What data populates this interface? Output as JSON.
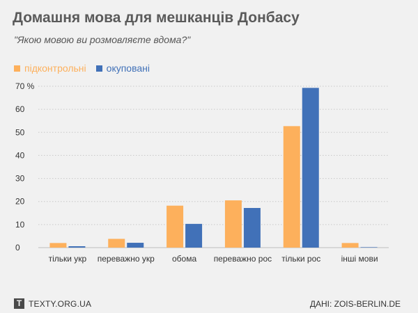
{
  "chart_data": {
    "type": "bar",
    "title": "Домашня мова для мешканців Донбасу",
    "subtitle": "\"Якою мовою ви розмовляєте вдома?\"",
    "categories": [
      "тільки укр",
      "переважно укр",
      "обома",
      "переважно рос",
      "тільки рос",
      "інші мови"
    ],
    "series": [
      {
        "name": "підконтрольні",
        "color": "#fdb05c",
        "values": [
          2.0,
          3.8,
          18.2,
          20.5,
          52.7,
          2.0
        ]
      },
      {
        "name": "окуповані",
        "color": "#4171b8",
        "values": [
          0.6,
          2.1,
          10.3,
          17.2,
          69.3,
          0.2
        ]
      }
    ],
    "ylim": [
      0,
      70
    ],
    "yticks": [
      0,
      10,
      20,
      30,
      40,
      50,
      60,
      70
    ],
    "ytick_labels": [
      "0",
      "10",
      "20",
      "30",
      "40",
      "50",
      "60",
      "70 %"
    ],
    "grid": true,
    "legend": "top-left"
  },
  "footer": {
    "logo_letter": "T",
    "site": "TEXTY.ORG.UA",
    "source": "ДАНІ: ZOIS-BERLIN.DE"
  }
}
